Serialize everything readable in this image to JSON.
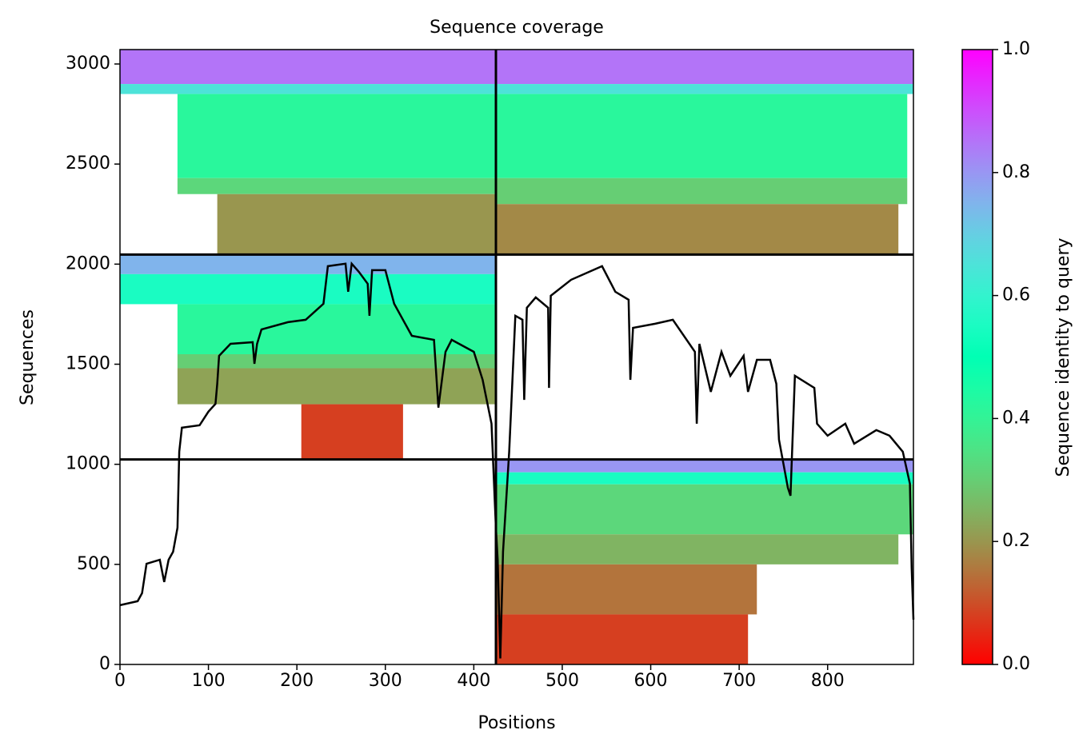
{
  "chart_data": {
    "type": "coverage",
    "title": "Sequence coverage",
    "xlabel": "Positions",
    "ylabel": "Sequences",
    "colorbar_label": "Sequence identity to query",
    "colormap": "rainbow_r",
    "xlim": [
      0,
      897
    ],
    "ylim": [
      0,
      3072
    ],
    "xticks": [
      0,
      100,
      200,
      300,
      400,
      500,
      600,
      700,
      800
    ],
    "yticks": [
      0,
      500,
      1000,
      1500,
      2000,
      2500,
      3000
    ],
    "clim": [
      0,
      1
    ],
    "cticks": [
      {
        "value": 0,
        "label": "0.0"
      },
      0.2,
      0.4,
      0.6,
      0.8,
      {
        "value": 1,
        "label": "1.0"
      }
    ],
    "boundaries": {
      "x": [
        425
      ],
      "y": [
        1024,
        2048
      ]
    },
    "bands": [
      {
        "x": [
          0,
          425
        ],
        "y": [
          2900,
          3072
        ],
        "identity": 0.85
      },
      {
        "x": [
          0,
          425
        ],
        "y": [
          2850,
          2900
        ],
        "identity": 0.65
      },
      {
        "x": [
          65,
          425
        ],
        "y": [
          2430,
          2850
        ],
        "identity": 0.42
      },
      {
        "x": [
          65,
          425
        ],
        "y": [
          2350,
          2430
        ],
        "identity": 0.32
      },
      {
        "x": [
          110,
          425
        ],
        "y": [
          2048,
          2350
        ],
        "identity": 0.2
      },
      {
        "x": [
          425,
          897
        ],
        "y": [
          2900,
          3072
        ],
        "identity": 0.85
      },
      {
        "x": [
          425,
          897
        ],
        "y": [
          2850,
          2900
        ],
        "identity": 0.65
      },
      {
        "x": [
          425,
          890
        ],
        "y": [
          2430,
          2850
        ],
        "identity": 0.42
      },
      {
        "x": [
          425,
          890
        ],
        "y": [
          2300,
          2430
        ],
        "identity": 0.3
      },
      {
        "x": [
          425,
          880
        ],
        "y": [
          2048,
          2300
        ],
        "identity": 0.18
      },
      {
        "x": [
          0,
          425
        ],
        "y": [
          1950,
          2048
        ],
        "identity": 0.75
      },
      {
        "x": [
          0,
          425
        ],
        "y": [
          1800,
          1950
        ],
        "identity": 0.55
      },
      {
        "x": [
          65,
          425
        ],
        "y": [
          1550,
          1800
        ],
        "identity": 0.42
      },
      {
        "x": [
          65,
          425
        ],
        "y": [
          1480,
          1550
        ],
        "identity": 0.3
      },
      {
        "x": [
          65,
          425
        ],
        "y": [
          1300,
          1480
        ],
        "identity": 0.22
      },
      {
        "x": [
          205,
          320
        ],
        "y": [
          1024,
          1300
        ],
        "identity": 0.08
      },
      {
        "x": [
          425,
          897
        ],
        "y": [
          960,
          1024
        ],
        "identity": 0.8
      },
      {
        "x": [
          425,
          897
        ],
        "y": [
          900,
          960
        ],
        "identity": 0.55
      },
      {
        "x": [
          425,
          897
        ],
        "y": [
          650,
          900
        ],
        "identity": 0.32
      },
      {
        "x": [
          425,
          880
        ],
        "y": [
          500,
          650
        ],
        "identity": 0.25
      },
      {
        "x": [
          425,
          720
        ],
        "y": [
          250,
          500
        ],
        "identity": 0.15
      },
      {
        "x": [
          425,
          710
        ],
        "y": [
          0,
          250
        ],
        "identity": 0.08
      }
    ],
    "coverage": {
      "color": "#000000",
      "x": [
        0,
        20,
        25,
        30,
        45,
        50,
        55,
        60,
        65,
        67,
        70,
        90,
        100,
        108,
        110,
        112,
        125,
        150,
        152,
        155,
        160,
        190,
        210,
        230,
        235,
        255,
        258,
        262,
        270,
        280,
        282,
        285,
        300,
        310,
        330,
        355,
        360,
        368,
        375,
        400,
        410,
        420,
        425,
        427,
        430,
        433,
        440,
        447,
        455,
        457,
        460,
        470,
        484,
        485,
        487,
        510,
        545,
        560,
        575,
        577,
        580,
        605,
        625,
        650,
        652,
        655,
        668,
        680,
        690,
        705,
        710,
        720,
        735,
        742,
        745,
        755,
        758,
        763,
        785,
        788,
        800,
        820,
        830,
        855,
        870,
        885,
        893,
        895,
        897
      ],
      "values": [
        296,
        316,
        356,
        503,
        523,
        412,
        523,
        563,
        683,
        1063,
        1183,
        1195,
        1263,
        1302,
        1402,
        1542,
        1602,
        1610,
        1502,
        1602,
        1674,
        1710,
        1722,
        1802,
        1990,
        2002,
        1862,
        2002,
        1962,
        1902,
        1742,
        1970,
        1970,
        1802,
        1642,
        1622,
        1283,
        1562,
        1622,
        1562,
        1422,
        1203,
        683,
        523,
        30,
        563,
        1063,
        1742,
        1722,
        1322,
        1782,
        1834,
        1782,
        1382,
        1842,
        1922,
        1990,
        1862,
        1822,
        1422,
        1682,
        1702,
        1722,
        1562,
        1203,
        1602,
        1362,
        1562,
        1442,
        1542,
        1362,
        1522,
        1522,
        1402,
        1123,
        883,
        843,
        1442,
        1382,
        1203,
        1143,
        1203,
        1103,
        1171,
        1143,
        1063,
        903,
        483,
        224
      ]
    }
  }
}
